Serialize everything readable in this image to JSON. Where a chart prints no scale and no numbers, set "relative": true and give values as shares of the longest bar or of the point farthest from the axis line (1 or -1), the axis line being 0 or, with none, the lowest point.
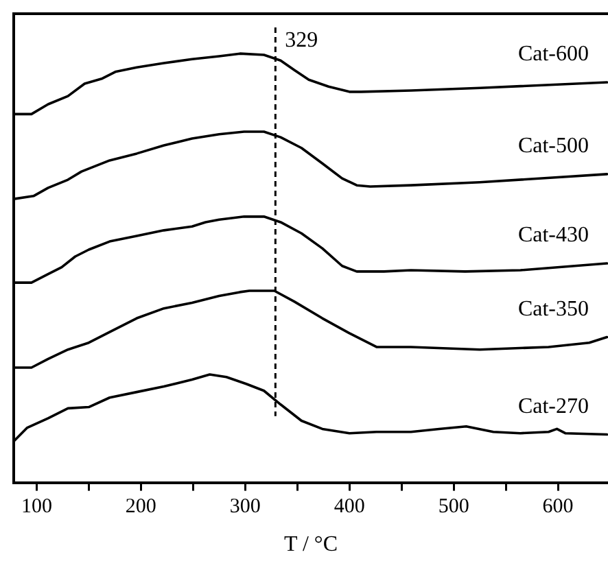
{
  "chart_data": {
    "type": "line",
    "relative": true,
    "xlabel": "T / °C",
    "xlim": [
      78,
      648
    ],
    "xticks": [
      100,
      {
        "value": 150,
        "label": null
      },
      200,
      {
        "value": 250,
        "label": null
      },
      300,
      {
        "value": 350,
        "label": null
      },
      400,
      {
        "value": 450,
        "label": null
      },
      500,
      {
        "value": 550,
        "label": null
      },
      600
    ],
    "ref_lines": [
      {
        "axis": "x",
        "value": 329,
        "label": "329",
        "line_style": "dashed",
        "color": "#000000"
      }
    ],
    "legend": false,
    "grid": false,
    "marker": "none",
    "line_style": "solid",
    "series": [
      {
        "name": "Cat-600",
        "color": "#000000",
        "x": [
          78,
          95,
          111,
          130,
          146,
          163,
          176,
          196,
          222,
          249,
          275,
          295,
          318,
          334,
          347,
          361,
          380,
          400,
          411,
          459,
          525,
          647
        ],
        "values": [
          0.859,
          0.859,
          0.882,
          0.901,
          0.93,
          0.942,
          0.958,
          0.968,
          0.978,
          0.987,
          0.994,
          1.0,
          0.997,
          0.984,
          0.962,
          0.939,
          0.923,
          0.911,
          0.911,
          0.914,
          0.92,
          0.933
        ]
      },
      {
        "name": "Cat-500",
        "color": "#000000",
        "x": [
          78,
          97,
          111,
          130,
          143,
          170,
          196,
          222,
          249,
          275,
          299,
          318,
          334,
          354,
          374,
          393,
          407,
          420,
          459,
          525,
          647
        ],
        "values": [
          0.661,
          0.668,
          0.687,
          0.706,
          0.725,
          0.751,
          0.767,
          0.786,
          0.802,
          0.812,
          0.818,
          0.818,
          0.805,
          0.78,
          0.744,
          0.709,
          0.693,
          0.69,
          0.693,
          0.7,
          0.719
        ]
      },
      {
        "name": "Cat-430",
        "color": "#000000",
        "x": [
          78,
          95,
          111,
          124,
          137,
          150,
          170,
          196,
          222,
          249,
          262,
          275,
          299,
          318,
          334,
          354,
          374,
          393,
          407,
          433,
          459,
          511,
          564,
          647
        ],
        "values": [
          0.466,
          0.466,
          0.486,
          0.502,
          0.527,
          0.543,
          0.562,
          0.575,
          0.588,
          0.597,
          0.607,
          0.613,
          0.62,
          0.62,
          0.607,
          0.581,
          0.546,
          0.505,
          0.492,
          0.492,
          0.495,
          0.492,
          0.495,
          0.511
        ]
      },
      {
        "name": "Cat-350",
        "color": "#000000",
        "x": [
          78,
          95,
          111,
          130,
          150,
          170,
          196,
          222,
          249,
          275,
          295,
          304,
          318,
          328,
          347,
          374,
          400,
          426,
          459,
          525,
          591,
          630,
          647
        ],
        "values": [
          0.268,
          0.268,
          0.288,
          0.31,
          0.326,
          0.351,
          0.383,
          0.406,
          0.419,
          0.435,
          0.444,
          0.447,
          0.447,
          0.447,
          0.422,
          0.383,
          0.348,
          0.316,
          0.316,
          0.31,
          0.316,
          0.326,
          0.339
        ]
      },
      {
        "name": "Cat-270",
        "color": "#000000",
        "x": [
          78,
          91,
          111,
          130,
          150,
          170,
          196,
          222,
          249,
          266,
          282,
          301,
          318,
          334,
          354,
          374,
          400,
          426,
          459,
          486,
          512,
          538,
          564,
          591,
          599,
          607,
          647
        ],
        "values": [
          0.096,
          0.128,
          0.15,
          0.173,
          0.176,
          0.198,
          0.211,
          0.224,
          0.24,
          0.252,
          0.246,
          0.23,
          0.214,
          0.182,
          0.144,
          0.125,
          0.115,
          0.118,
          0.118,
          0.125,
          0.131,
          0.118,
          0.115,
          0.118,
          0.125,
          0.115,
          0.112
        ]
      }
    ]
  }
}
